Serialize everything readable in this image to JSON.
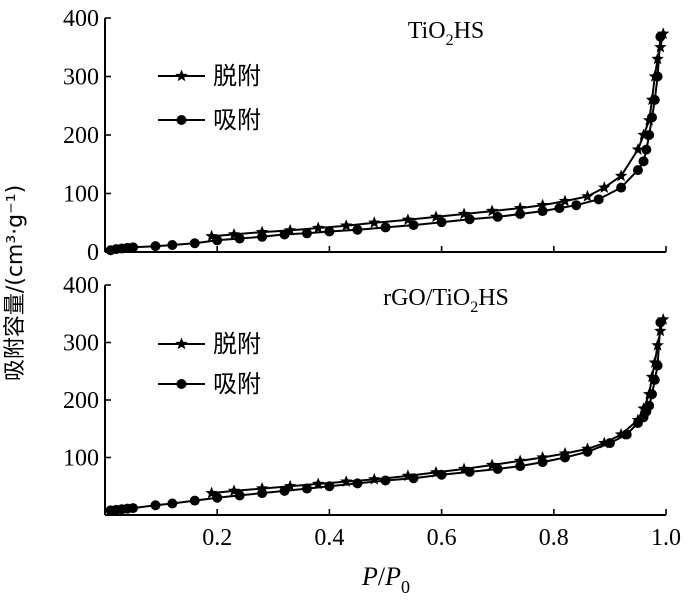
{
  "chart_data": {
    "type": "line",
    "shared_ylabel": "吸附容量/(cm³·g⁻¹)",
    "xlabel": {
      "base": "P",
      "slash": "/",
      "base2": "P",
      "sub": "0"
    },
    "xlim": [
      0,
      1.0
    ],
    "xticks": [
      0.2,
      0.4,
      0.6,
      0.8,
      1.0
    ],
    "xtick_labels": [
      "0.2",
      "0.4",
      "0.6",
      "0.8",
      "1.0"
    ],
    "grid": false,
    "panels": [
      {
        "title": {
          "pre": "TiO",
          "sub": "2",
          "post": "HS"
        },
        "ylim": [
          0,
          400
        ],
        "yticks": [
          0,
          100,
          200,
          300,
          400
        ],
        "ytick_labels": [
          "0",
          "100",
          "200",
          "300",
          "400"
        ],
        "legend": [
          "脱附",
          "吸附"
        ],
        "series": [
          {
            "name": "脱附",
            "marker": "star",
            "x": [
              0.19,
              0.23,
              0.28,
              0.33,
              0.38,
              0.43,
              0.48,
              0.54,
              0.59,
              0.64,
              0.69,
              0.74,
              0.78,
              0.82,
              0.86,
              0.89,
              0.92,
              0.95,
              0.96,
              0.97,
              0.975,
              0.98,
              0.985,
              0.99,
              0.995
            ],
            "y": [
              27,
              30,
              34,
              37,
              41,
              45,
              50,
              55,
              60,
              65,
              70,
              75,
              80,
              87,
              95,
              110,
              130,
              175,
              200,
              225,
              260,
              300,
              330,
              350,
              373
            ]
          },
          {
            "name": "吸附",
            "marker": "circle",
            "x": [
              0.01,
              0.02,
              0.03,
              0.04,
              0.05,
              0.09,
              0.12,
              0.16,
              0.2,
              0.24,
              0.28,
              0.32,
              0.36,
              0.4,
              0.45,
              0.5,
              0.55,
              0.6,
              0.65,
              0.7,
              0.74,
              0.78,
              0.81,
              0.84,
              0.88,
              0.92,
              0.95,
              0.96,
              0.965,
              0.97,
              0.975,
              0.98,
              0.985,
              0.99
            ],
            "y": [
              3,
              5,
              6,
              7,
              8,
              10,
              12,
              15,
              20,
              23,
              26,
              30,
              32,
              35,
              38,
              42,
              46,
              51,
              56,
              60,
              65,
              70,
              75,
              80,
              90,
              110,
              140,
              155,
              175,
              200,
              230,
              260,
              300,
              368
            ]
          }
        ]
      },
      {
        "title": {
          "pre": "rGO/TiO",
          "sub": "2",
          "post": "HS"
        },
        "ylim": [
          0,
          400
        ],
        "yticks": [
          100,
          200,
          300,
          400
        ],
        "ytick_labels": [
          "100",
          "200",
          "300",
          "400"
        ],
        "legend": [
          "脱附",
          "吸附"
        ],
        "series": [
          {
            "name": "脱附",
            "marker": "star",
            "x": [
              0.19,
              0.23,
              0.28,
              0.33,
              0.38,
              0.43,
              0.48,
              0.54,
              0.59,
              0.64,
              0.69,
              0.74,
              0.78,
              0.82,
              0.86,
              0.89,
              0.92,
              0.95,
              0.96,
              0.97,
              0.975,
              0.98,
              0.985,
              0.99,
              0.995
            ],
            "y": [
              38,
              42,
              46,
              50,
              54,
              58,
              62,
              68,
              74,
              80,
              87,
              94,
              100,
              107,
              115,
              125,
              140,
              165,
              185,
              210,
              240,
              265,
              295,
              320,
              340
            ]
          },
          {
            "name": "吸附",
            "marker": "circle",
            "x": [
              0.01,
              0.02,
              0.03,
              0.04,
              0.05,
              0.09,
              0.12,
              0.16,
              0.2,
              0.24,
              0.28,
              0.32,
              0.36,
              0.4,
              0.45,
              0.5,
              0.55,
              0.6,
              0.65,
              0.7,
              0.74,
              0.78,
              0.82,
              0.86,
              0.9,
              0.93,
              0.95,
              0.96,
              0.965,
              0.97,
              0.975,
              0.98,
              0.985,
              0.99
            ],
            "y": [
              8,
              9,
              10,
              11,
              12,
              17,
              20,
              25,
              30,
              34,
              38,
              42,
              46,
              50,
              55,
              60,
              64,
              70,
              75,
              80,
              85,
              92,
              100,
              110,
              125,
              140,
              160,
              170,
              180,
              190,
              210,
              235,
              260,
              335
            ]
          }
        ]
      }
    ]
  }
}
